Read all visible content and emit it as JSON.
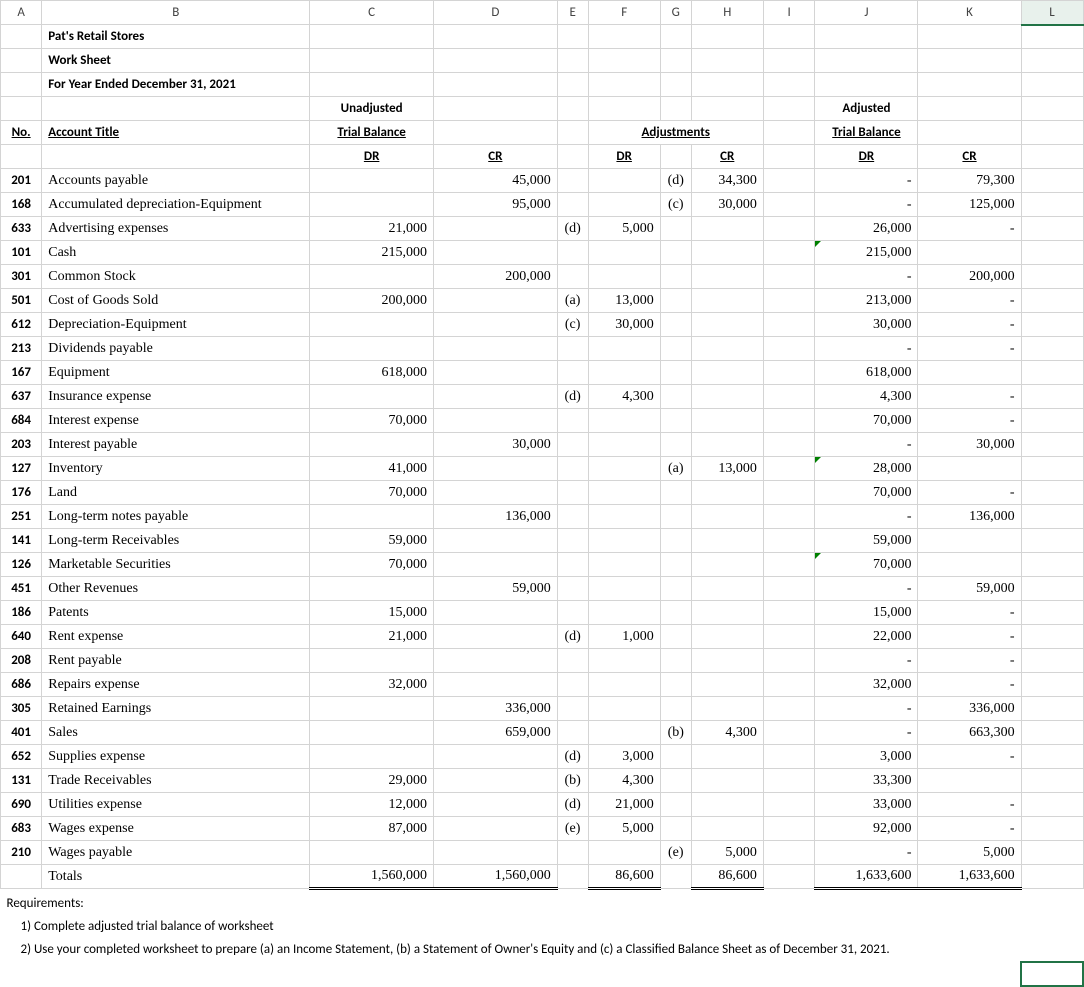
{
  "cols": [
    "A",
    "B",
    "C",
    "D",
    "E",
    "F",
    "G",
    "H",
    "I",
    "J",
    "K",
    "L"
  ],
  "title1": "Pat's Retail Stores",
  "title2": "Work Sheet",
  "title3": "For Year Ended December 31, 2021",
  "hdr_unadj": "Unadjusted",
  "hdr_trialbal": "Trial Balance",
  "hdr_adjustments": "Adjustments",
  "hdr_adjusted": "Adjusted",
  "hdr_no": "No.",
  "hdr_account": "Account Title",
  "hdr_dr": "DR",
  "hdr_cr": "CR",
  "rows": [
    {
      "no": "201",
      "title": "Accounts payable",
      "utb_dr": "",
      "utb_cr": "45,000",
      "adj_e": "",
      "adj_dr": "",
      "adj_g": "(d)",
      "adj_cr": "34,300",
      "atb_dr": "-",
      "atb_cr": "79,300"
    },
    {
      "no": "168",
      "title": "Accumulated depreciation-Equipment",
      "utb_dr": "",
      "utb_cr": "95,000",
      "adj_e": "",
      "adj_dr": "",
      "adj_g": "(c)",
      "adj_cr": "30,000",
      "atb_dr": "-",
      "atb_cr": "125,000"
    },
    {
      "no": "633",
      "title": "Advertising expenses",
      "utb_dr": "21,000",
      "utb_cr": "",
      "adj_e": "(d)",
      "adj_dr": "5,000",
      "adj_g": "",
      "adj_cr": "",
      "atb_dr": "26,000",
      "atb_cr": "-"
    },
    {
      "no": "101",
      "title": "Cash",
      "utb_dr": "215,000",
      "utb_cr": "",
      "adj_e": "",
      "adj_dr": "",
      "adj_g": "",
      "adj_cr": "",
      "atb_dr": "215,000",
      "atb_cr": "",
      "flag": true
    },
    {
      "no": "301",
      "title": "Common Stock",
      "utb_dr": "",
      "utb_cr": "200,000",
      "adj_e": "",
      "adj_dr": "",
      "adj_g": "",
      "adj_cr": "",
      "atb_dr": "-",
      "atb_cr": "200,000"
    },
    {
      "no": "501",
      "title": "Cost of Goods Sold",
      "utb_dr": "200,000",
      "utb_cr": "",
      "adj_e": "(a)",
      "adj_dr": "13,000",
      "adj_g": "",
      "adj_cr": "",
      "atb_dr": "213,000",
      "atb_cr": "-"
    },
    {
      "no": "612",
      "title": "Depreciation-Equipment",
      "utb_dr": "",
      "utb_cr": "",
      "adj_e": "(c)",
      "adj_dr": "30,000",
      "adj_g": "",
      "adj_cr": "",
      "atb_dr": "30,000",
      "atb_cr": "-"
    },
    {
      "no": "213",
      "title": "Dividends payable",
      "utb_dr": "",
      "utb_cr": "",
      "adj_e": "",
      "adj_dr": "",
      "adj_g": "",
      "adj_cr": "",
      "atb_dr": "-",
      "atb_cr": "-"
    },
    {
      "no": "167",
      "title": "Equipment",
      "utb_dr": "618,000",
      "utb_cr": "",
      "adj_e": "",
      "adj_dr": "",
      "adj_g": "",
      "adj_cr": "",
      "atb_dr": "618,000",
      "atb_cr": ""
    },
    {
      "no": "637",
      "title": "Insurance expense",
      "utb_dr": "",
      "utb_cr": "",
      "adj_e": "(d)",
      "adj_dr": "4,300",
      "adj_g": "",
      "adj_cr": "",
      "atb_dr": "4,300",
      "atb_cr": "-"
    },
    {
      "no": "684",
      "title": "Interest expense",
      "utb_dr": "70,000",
      "utb_cr": "",
      "adj_e": "",
      "adj_dr": "",
      "adj_g": "",
      "adj_cr": "",
      "atb_dr": "70,000",
      "atb_cr": "-"
    },
    {
      "no": "203",
      "title": "Interest payable",
      "utb_dr": "",
      "utb_cr": "30,000",
      "adj_e": "",
      "adj_dr": "",
      "adj_g": "",
      "adj_cr": "",
      "atb_dr": "-",
      "atb_cr": "30,000"
    },
    {
      "no": "127",
      "title": "Inventory",
      "utb_dr": "41,000",
      "utb_cr": "",
      "adj_e": "",
      "adj_dr": "",
      "adj_g": "(a)",
      "adj_cr": "13,000",
      "atb_dr": "28,000",
      "atb_cr": "",
      "flag": true
    },
    {
      "no": "176",
      "title": "Land",
      "utb_dr": "70,000",
      "utb_cr": "",
      "adj_e": "",
      "adj_dr": "",
      "adj_g": "",
      "adj_cr": "",
      "atb_dr": "70,000",
      "atb_cr": "-"
    },
    {
      "no": "251",
      "title": "Long-term notes payable",
      "utb_dr": "",
      "utb_cr": "136,000",
      "adj_e": "",
      "adj_dr": "",
      "adj_g": "",
      "adj_cr": "",
      "atb_dr": "-",
      "atb_cr": "136,000"
    },
    {
      "no": "141",
      "title": "Long-term Receivables",
      "utb_dr": "59,000",
      "utb_cr": "",
      "adj_e": "",
      "adj_dr": "",
      "adj_g": "",
      "adj_cr": "",
      "atb_dr": "59,000",
      "atb_cr": ""
    },
    {
      "no": "126",
      "title": "Marketable Securities",
      "utb_dr": "70,000",
      "utb_cr": "",
      "adj_e": "",
      "adj_dr": "",
      "adj_g": "",
      "adj_cr": "",
      "atb_dr": "70,000",
      "atb_cr": "",
      "flag": true
    },
    {
      "no": "451",
      "title": "Other Revenues",
      "utb_dr": "",
      "utb_cr": "59,000",
      "adj_e": "",
      "adj_dr": "",
      "adj_g": "",
      "adj_cr": "",
      "atb_dr": "-",
      "atb_cr": "59,000"
    },
    {
      "no": "186",
      "title": "Patents",
      "utb_dr": "15,000",
      "utb_cr": "",
      "adj_e": "",
      "adj_dr": "",
      "adj_g": "",
      "adj_cr": "",
      "atb_dr": "15,000",
      "atb_cr": "-"
    },
    {
      "no": "640",
      "title": "Rent expense",
      "utb_dr": "21,000",
      "utb_cr": "",
      "adj_e": "(d)",
      "adj_dr": "1,000",
      "adj_g": "",
      "adj_cr": "",
      "atb_dr": "22,000",
      "atb_cr": "-"
    },
    {
      "no": "208",
      "title": "Rent payable",
      "utb_dr": "",
      "utb_cr": "",
      "adj_e": "",
      "adj_dr": "",
      "adj_g": "",
      "adj_cr": "",
      "atb_dr": "-",
      "atb_cr": "-"
    },
    {
      "no": "686",
      "title": "Repairs expense",
      "utb_dr": "32,000",
      "utb_cr": "",
      "adj_e": "",
      "adj_dr": "",
      "adj_g": "",
      "adj_cr": "",
      "atb_dr": "32,000",
      "atb_cr": "-"
    },
    {
      "no": "305",
      "title": "Retained Earnings",
      "utb_dr": "",
      "utb_cr": "336,000",
      "adj_e": "",
      "adj_dr": "",
      "adj_g": "",
      "adj_cr": "",
      "atb_dr": "-",
      "atb_cr": "336,000"
    },
    {
      "no": "401",
      "title": "Sales",
      "utb_dr": "",
      "utb_cr": "659,000",
      "adj_e": "",
      "adj_dr": "",
      "adj_g": "(b)",
      "adj_cr": "4,300",
      "atb_dr": "-",
      "atb_cr": "663,300"
    },
    {
      "no": "652",
      "title": "Supplies expense",
      "utb_dr": "",
      "utb_cr": "",
      "adj_e": "(d)",
      "adj_dr": "3,000",
      "adj_g": "",
      "adj_cr": "",
      "atb_dr": "3,000",
      "atb_cr": "-"
    },
    {
      "no": "131",
      "title": "Trade Receivables",
      "utb_dr": "29,000",
      "utb_cr": "",
      "adj_e": "(b)",
      "adj_dr": "4,300",
      "adj_g": "",
      "adj_cr": "",
      "atb_dr": "33,300",
      "atb_cr": ""
    },
    {
      "no": "690",
      "title": "Utilities expense",
      "utb_dr": "12,000",
      "utb_cr": "",
      "adj_e": "(d)",
      "adj_dr": "21,000",
      "adj_g": "",
      "adj_cr": "",
      "atb_dr": "33,000",
      "atb_cr": "-"
    },
    {
      "no": "683",
      "title": "Wages expense",
      "utb_dr": "87,000",
      "utb_cr": "",
      "adj_e": "(e)",
      "adj_dr": "5,000",
      "adj_g": "",
      "adj_cr": "",
      "atb_dr": "92,000",
      "atb_cr": "-"
    },
    {
      "no": "210",
      "title": "Wages payable",
      "utb_dr": "",
      "utb_cr": "",
      "adj_e": "",
      "adj_dr": "",
      "adj_g": "(e)",
      "adj_cr": "5,000",
      "atb_dr": "-",
      "atb_cr": "5,000"
    }
  ],
  "totals": {
    "label": "Totals",
    "utb_dr": "1,560,000",
    "utb_cr": "1,560,000",
    "adj_dr": "86,600",
    "adj_cr": "86,600",
    "atb_dr": "1,633,600",
    "atb_cr": "1,633,600"
  },
  "req_label": "Requirements:",
  "req1": "1) Complete adjusted trial balance of worksheet",
  "req2": "2) Use your completed worksheet to prepare (a) an Income Statement, (b) a Statement of Owner's Equity and (c) a Classified Balance Sheet as of December 31, 2021."
}
